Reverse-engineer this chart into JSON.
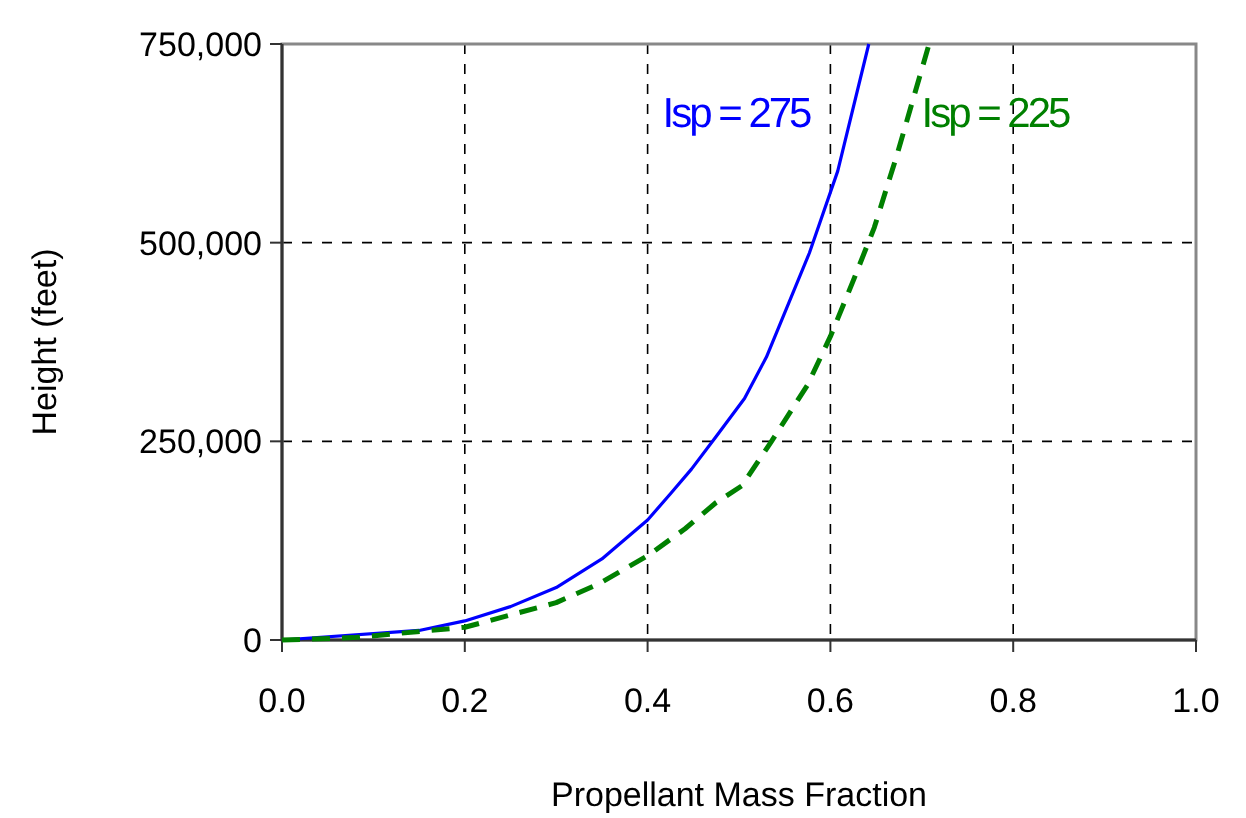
{
  "chart_data": {
    "type": "line",
    "xlabel": "Propellant Mass Fraction",
    "ylabel": "Height (feet)",
    "xlim": [
      0,
      1
    ],
    "ylim": [
      0,
      750000
    ],
    "xticks": [
      {
        "value": 0,
        "label": "0.0"
      },
      {
        "value": 0.2,
        "label": "0.2"
      },
      {
        "value": 0.4,
        "label": "0.4"
      },
      {
        "value": 0.6,
        "label": "0.6"
      },
      {
        "value": 0.8,
        "label": "0.8"
      },
      {
        "value": 1,
        "label": "1.0"
      }
    ],
    "yticks": [
      {
        "value": 0,
        "label": "0"
      },
      {
        "value": 250000,
        "label": "250,000"
      },
      {
        "value": 500000,
        "label": "500,000"
      },
      {
        "value": 750000,
        "label": "750,000"
      }
    ],
    "grid": true,
    "marker": "none",
    "series": [
      {
        "name": "Isp = 275",
        "color": "#0000ff",
        "line_style": "solid",
        "x": [
          0,
          0.15,
          0.2,
          0.25,
          0.3,
          0.35,
          0.4,
          0.425,
          0.448,
          0.475,
          0.506,
          0.53,
          0.577,
          0.608,
          0.642
        ],
        "values": [
          0,
          12000,
          24000,
          42000,
          66000,
          102000,
          151000,
          184000,
          215000,
          256000,
          304000,
          356000,
          487000,
          590000,
          750000
        ]
      },
      {
        "name": "Isp = 225",
        "color": "#008000",
        "line_style": "dashed",
        "x": [
          0,
          0.078,
          0.2,
          0.3,
          0.347,
          0.4,
          0.441,
          0.475,
          0.503,
          0.535,
          0.575,
          0.6,
          0.626,
          0.648,
          0.673,
          0.708
        ],
        "values": [
          0,
          3000,
          16000,
          47000,
          71000,
          106000,
          140000,
          173000,
          194000,
          249000,
          321000,
          382000,
          455000,
          519000,
          611000,
          750000
        ]
      }
    ]
  }
}
